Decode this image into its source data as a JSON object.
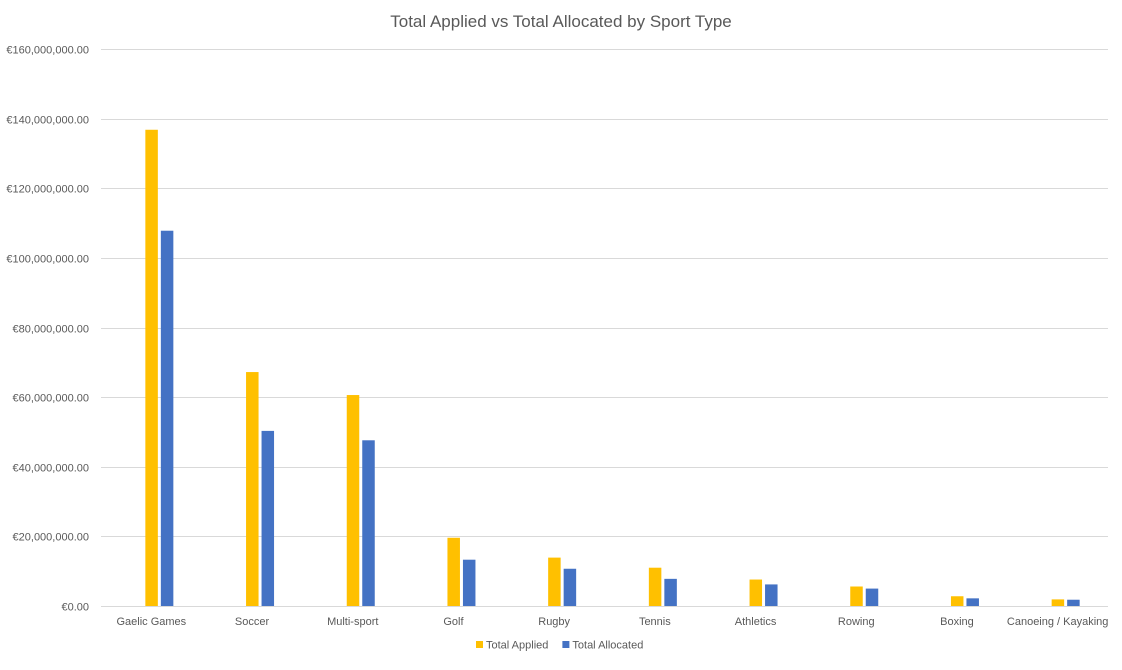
{
  "chart_data": {
    "type": "bar",
    "title": "Total Applied vs Total Allocated by Sport Type",
    "xlabel": "",
    "ylabel": "",
    "categories": [
      "Gaelic Games",
      "Soccer",
      "Multi-sport",
      "Golf",
      "Rugby",
      "Tennis",
      "Athletics",
      "Rowing",
      "Boxing",
      "Canoeing / Kayaking"
    ],
    "series": [
      {
        "name": "Total Applied",
        "color": "#FFC000",
        "values": [
          136800000,
          67200000,
          60600000,
          19600000,
          13900000,
          11000000,
          7600000,
          5600000,
          2800000,
          1900000
        ]
      },
      {
        "name": "Total Allocated",
        "color": "#4472C4",
        "values": [
          107800000,
          50300000,
          47600000,
          13300000,
          10700000,
          7800000,
          6200000,
          5000000,
          2200000,
          1800000
        ]
      }
    ],
    "ylim": [
      0,
      160000000
    ],
    "yticks": [
      0,
      20000000,
      40000000,
      60000000,
      80000000,
      100000000,
      120000000,
      140000000,
      160000000
    ],
    "ytick_labels": [
      "€0.00",
      "€20,000,000.00",
      "€40,000,000.00",
      "€60,000,000.00",
      "€80,000,000.00",
      "€100,000,000.00",
      "€120,000,000.00",
      "€140,000,000.00",
      "€160,000,000.00"
    ],
    "grid": true,
    "legend_position": "bottom",
    "gridline_color": "#D9D9D9"
  }
}
